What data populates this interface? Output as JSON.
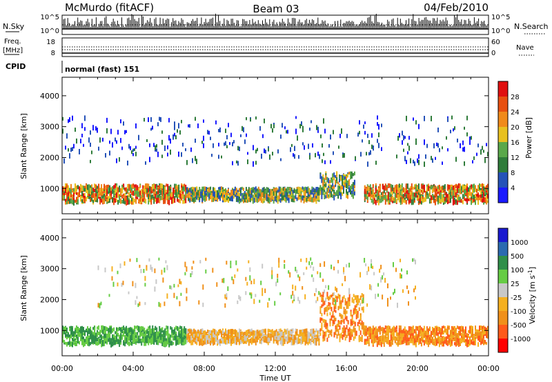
{
  "header": {
    "station": "McMurdo (fitACF)",
    "beam": "Beam 03",
    "date": "04/Feb/2010"
  },
  "status_panel": {
    "left_top_label": "N.Sky",
    "right_top_label": "N.Search",
    "nsky_ticks": [
      "10^5",
      "10^0"
    ],
    "nsky_right_ticks": [
      "10^5",
      "10^0"
    ],
    "freq_label": "Freq.",
    "freq_units": "[MHz]",
    "freq_ticks": [
      "18",
      "8"
    ],
    "nave_ticks": [
      "60",
      "0"
    ],
    "nave_label": "Nave",
    "cpid_label": "CPID",
    "cpid_value": "normal (fast) 151"
  },
  "colors": {
    "power_scale": [
      "#1a1aff",
      "#2552b8",
      "#2f7c3a",
      "#5aa84a",
      "#e8c020",
      "#f08a1a",
      "#e85010",
      "#e01010"
    ],
    "velocity_scale": [
      "#ff0000",
      "#ff5a1a",
      "#f0901a",
      "#f5b020",
      "#c8c8c8",
      "#66cc44",
      "#2f8f4a",
      "#2a6ab0",
      "#1a1ad0"
    ]
  },
  "chart_data": [
    {
      "type": "heatmap",
      "title": "Power",
      "xlabel": "Time UT",
      "ylabel": "Slant Range [km]",
      "x_ticks": [
        "00:00",
        "04:00",
        "08:00",
        "12:00",
        "16:00",
        "20:00",
        "00:00"
      ],
      "y_ticks": [
        "1000",
        "2000",
        "3000",
        "4000"
      ],
      "xlim": [
        0,
        24
      ],
      "ylim": [
        180,
        4600
      ],
      "colorbar_label": "Power [dB]",
      "colorbar_ticks": [
        "4",
        "8",
        "12",
        "16",
        "20",
        "24",
        "28"
      ],
      "colorbar_range": [
        0,
        30
      ],
      "bands": [
        {
          "t0": 0,
          "t1": 7,
          "r0": 550,
          "r1": 1100,
          "level": "high"
        },
        {
          "t0": 7,
          "t1": 14.5,
          "r0": 600,
          "r1": 1000,
          "level": "medium"
        },
        {
          "t0": 14.5,
          "t1": 16.5,
          "r0": 700,
          "r1": 1500,
          "level": "medium"
        },
        {
          "t0": 17,
          "t1": 24,
          "r0": 550,
          "r1": 1100,
          "level": "high"
        },
        {
          "t0": 0,
          "t1": 24,
          "r0": 1800,
          "r1": 3300,
          "level": "low"
        }
      ]
    },
    {
      "type": "heatmap",
      "title": "Velocity",
      "xlabel": "Time UT",
      "ylabel": "Slant Range [km]",
      "x_ticks": [
        "00:00",
        "04:00",
        "08:00",
        "12:00",
        "16:00",
        "20:00",
        "00:00"
      ],
      "y_ticks": [
        "1000",
        "2000",
        "3000",
        "4000"
      ],
      "xlim": [
        0,
        24
      ],
      "ylim": [
        180,
        4600
      ],
      "colorbar_label": "Velocity [m s",
      "colorbar_unit_superscript": "-1",
      "colorbar_unit_close": "]",
      "colorbar_ticks": [
        "1000",
        "500",
        "100",
        "25",
        "-25",
        "-100",
        "-500",
        "-1000"
      ],
      "bands": [
        {
          "t0": 0,
          "t1": 7,
          "r0": 550,
          "r1": 1100,
          "level": "green"
        },
        {
          "t0": 7,
          "t1": 14.5,
          "r0": 600,
          "r1": 1000,
          "level": "yellow"
        },
        {
          "t0": 14.5,
          "t1": 17,
          "r0": 700,
          "r1": 2200,
          "level": "orange"
        },
        {
          "t0": 17,
          "t1": 24,
          "r0": 550,
          "r1": 1100,
          "level": "orange"
        },
        {
          "t0": 2,
          "t1": 20,
          "r0": 1800,
          "r1": 3300,
          "level": "mixed"
        }
      ]
    }
  ]
}
